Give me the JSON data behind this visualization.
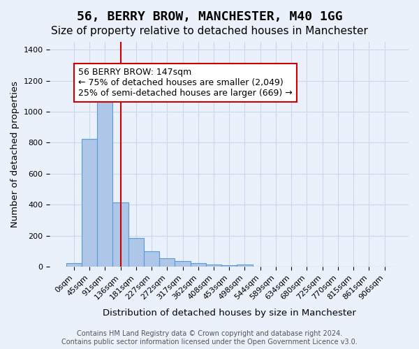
{
  "title": "56, BERRY BROW, MANCHESTER, M40 1GG",
  "subtitle": "Size of property relative to detached houses in Manchester",
  "xlabel": "Distribution of detached houses by size in Manchester",
  "ylabel": "Number of detached properties",
  "bar_values": [
    25,
    825,
    1075,
    415,
    185,
    100,
    55,
    37,
    22,
    15,
    10,
    15,
    0,
    0,
    0,
    0,
    0,
    0,
    0,
    0,
    0
  ],
  "bar_labels": [
    "0sqm",
    "45sqm",
    "91sqm",
    "136sqm",
    "181sqm",
    "227sqm",
    "272sqm",
    "317sqm",
    "362sqm",
    "408sqm",
    "453sqm",
    "498sqm",
    "544sqm",
    "589sqm",
    "634sqm",
    "680sqm",
    "725sqm",
    "770sqm",
    "815sqm",
    "861sqm",
    "906sqm"
  ],
  "bar_color": "#aec6e8",
  "bar_edge_color": "#5b9bd5",
  "vline_x": 3,
  "vline_color": "#cc0000",
  "annotation_box_text": "56 BERRY BROW: 147sqm\n← 75% of detached houses are smaller (2,049)\n25% of semi-detached houses are larger (669) →",
  "ylim": [
    0,
    1450
  ],
  "yticks": [
    0,
    200,
    400,
    600,
    800,
    1000,
    1200,
    1400
  ],
  "footer_text": "Contains HM Land Registry data © Crown copyright and database right 2024.\nContains public sector information licensed under the Open Government Licence v3.0.",
  "background_color": "#eaf1fb",
  "plot_background_color": "#eaf1fb",
  "grid_color": "#c8d8ee",
  "title_fontsize": 13,
  "subtitle_fontsize": 11,
  "axis_fontsize": 9.5,
  "tick_fontsize": 8,
  "annotation_fontsize": 9
}
